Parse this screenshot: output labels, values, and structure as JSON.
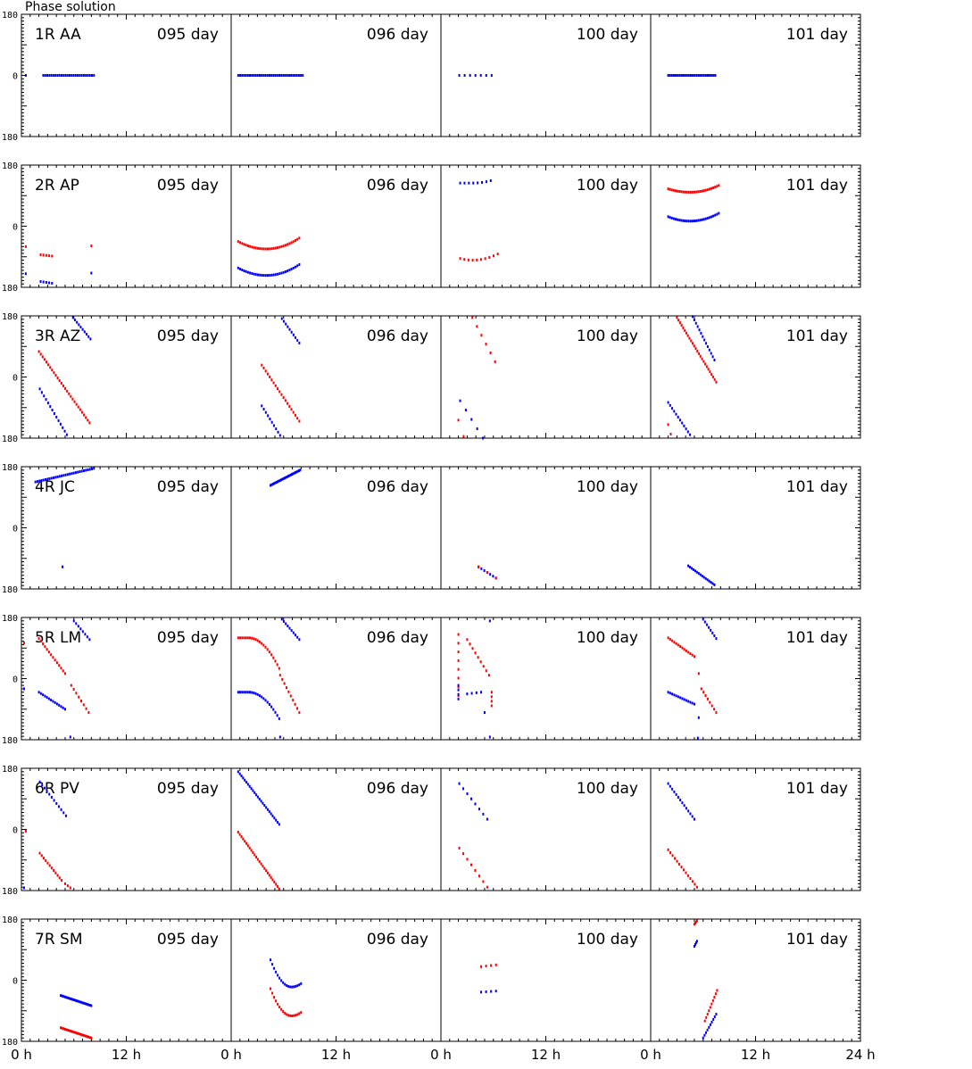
{
  "title": "Phase solution",
  "chart_data": {
    "type": "scatter",
    "title": "Phase solution",
    "days": [
      "095 day",
      "096 day",
      "100 day",
      "101 day"
    ],
    "baselines": [
      "1R AA",
      "2R AP",
      "3R AZ",
      "4R JC",
      "5R LM",
      "6R PV",
      "7R SM"
    ],
    "ylim": [
      -180,
      180
    ],
    "yticks": [
      "180",
      "0",
      "-180"
    ],
    "xlim": [
      0,
      24
    ],
    "xticks": [
      "0 h",
      "12 h",
      "0 h",
      "12 h",
      "0 h",
      "12 h",
      "0 h",
      "12 h",
      "24 h"
    ],
    "colors": {
      "blue": "#0000ff",
      "red": "#ff0000"
    },
    "series": [
      {
        "panel": 0,
        "day": 0,
        "color": "blue",
        "segments": [
          [
            0.5,
            0,
            0.5,
            0,
            1
          ],
          [
            2.5,
            0,
            8.3,
            0,
            26
          ]
        ]
      },
      {
        "panel": 0,
        "day": 1,
        "color": "blue",
        "segments": [
          [
            0.8,
            0,
            8.2,
            0,
            34
          ]
        ]
      },
      {
        "panel": 0,
        "day": 2,
        "color": "blue",
        "segments": [
          [
            2.1,
            0,
            5.8,
            0,
            7
          ]
        ]
      },
      {
        "panel": 0,
        "day": 3,
        "color": "blue",
        "segments": [
          [
            2.0,
            0,
            7.4,
            0,
            26
          ]
        ]
      },
      {
        "panel": 1,
        "day": 0,
        "color": "red",
        "segments": [
          [
            0.5,
            -60,
            0.5,
            -60,
            1
          ],
          [
            2.2,
            -84,
            3.5,
            -88,
            5
          ],
          [
            8.0,
            -58,
            8.0,
            -58,
            1
          ]
        ]
      },
      {
        "panel": 1,
        "day": 0,
        "color": "blue",
        "segments": [
          [
            0.5,
            -140,
            0.5,
            -140,
            1
          ],
          [
            2.2,
            -163,
            3.5,
            -168,
            5
          ],
          [
            8.0,
            -138,
            8.0,
            -138,
            1
          ]
        ]
      },
      {
        "panel": 1,
        "day": 1,
        "color": "red",
        "curve": {
          "x0": 0.8,
          "x1": 7.8,
          "xm": 4.0,
          "ym": -67,
          "ya": -45,
          "yb": -35,
          "n": 32
        }
      },
      {
        "panel": 1,
        "day": 1,
        "color": "blue",
        "curve": {
          "x0": 0.8,
          "x1": 7.8,
          "xm": 4.0,
          "ym": -145,
          "ya": -123,
          "yb": -113,
          "n": 32
        }
      },
      {
        "panel": 1,
        "day": 2,
        "color": "blue",
        "curve": {
          "x0": 2.2,
          "x1": 5.7,
          "xm": 3.6,
          "ym": 127,
          "ya": 127,
          "yb": 134,
          "n": 8
        }
      },
      {
        "panel": 1,
        "day": 2,
        "color": "red",
        "curve": {
          "x0": 2.2,
          "x1": 6.5,
          "xm": 3.6,
          "ym": -100,
          "ya": -95,
          "yb": -82,
          "n": 10
        }
      },
      {
        "panel": 1,
        "day": 3,
        "color": "red",
        "curve": {
          "x0": 2.0,
          "x1": 7.8,
          "xm": 4.5,
          "ym": 100,
          "ya": 110,
          "yb": 120,
          "n": 28
        }
      },
      {
        "panel": 1,
        "day": 3,
        "color": "blue",
        "curve": {
          "x0": 2.0,
          "x1": 7.8,
          "xm": 4.5,
          "ym": 15,
          "ya": 28,
          "yb": 38,
          "n": 28
        }
      },
      {
        "panel": 2,
        "day": 0,
        "color": "red",
        "segments": [
          [
            2.0,
            75,
            7.8,
            -135,
            28
          ]
        ]
      },
      {
        "panel": 2,
        "day": 0,
        "color": "blue",
        "segments": [
          [
            2.1,
            -35,
            5.2,
            -170,
            14
          ],
          [
            5.9,
            175,
            7.9,
            112,
            10
          ]
        ]
      },
      {
        "panel": 2,
        "day": 1,
        "color": "red",
        "segments": [
          [
            3.5,
            35,
            7.8,
            -130,
            20
          ]
        ]
      },
      {
        "panel": 2,
        "day": 1,
        "color": "blue",
        "segments": [
          [
            3.5,
            -85,
            5.6,
            -172,
            10
          ],
          [
            5.8,
            172,
            7.8,
            100,
            10
          ]
        ]
      },
      {
        "panel": 2,
        "day": 2,
        "color": "red",
        "segments": [
          [
            2.0,
            -127,
            2.6,
            -175,
            2
          ],
          [
            3.6,
            175,
            6.2,
            45,
            6
          ]
        ]
      },
      {
        "panel": 2,
        "day": 2,
        "color": "blue",
        "segments": [
          [
            2.2,
            -70,
            4.8,
            -180,
            5
          ]
        ]
      },
      {
        "panel": 2,
        "day": 3,
        "color": "red",
        "segments": [
          [
            2.0,
            -140,
            2.3,
            -168,
            2
          ],
          [
            3.0,
            175,
            7.5,
            -15,
            26
          ]
        ]
      },
      {
        "panel": 2,
        "day": 3,
        "color": "blue",
        "segments": [
          [
            2.0,
            -75,
            4.5,
            -170,
            12
          ],
          [
            4.8,
            178,
            7.3,
            50,
            14
          ]
        ]
      },
      {
        "panel": 3,
        "day": 0,
        "color": "blue",
        "segments": [
          [
            1.6,
            135,
            8.3,
            175,
            30
          ],
          [
            4.7,
            -115,
            4.7,
            -115,
            1
          ]
        ]
      },
      {
        "panel": 3,
        "day": 1,
        "color": "blue",
        "segments": [
          [
            4.5,
            125,
            7.9,
            170,
            26
          ]
        ]
      },
      {
        "panel": 3,
        "day": 2,
        "color": "blue",
        "segments": [
          [
            4.3,
            -115,
            6.3,
            -148,
            7
          ]
        ]
      },
      {
        "panel": 3,
        "day": 2,
        "color": "red",
        "segments": [
          [
            4.3,
            -115,
            6.3,
            -148,
            3
          ]
        ]
      },
      {
        "panel": 3,
        "day": 3,
        "color": "blue",
        "segments": [
          [
            4.3,
            -112,
            7.3,
            -168,
            16
          ]
        ]
      },
      {
        "panel": 4,
        "day": 0,
        "color": "red",
        "segments": [
          [
            0.3,
            105,
            0.3,
            105,
            1
          ],
          [
            2.0,
            118,
            5.0,
            15,
            14
          ],
          [
            5.7,
            -20,
            7.7,
            -100,
            8
          ]
        ]
      },
      {
        "panel": 4,
        "day": 0,
        "color": "blue",
        "segments": [
          [
            0.3,
            -30,
            0.3,
            -30,
            1
          ],
          [
            2.0,
            -40,
            5.0,
            -90,
            14
          ],
          [
            6.0,
            170,
            7.8,
            115,
            8
          ],
          [
            5.6,
            -172,
            5.6,
            -172,
            1
          ]
        ]
      },
      {
        "panel": 4,
        "day": 1,
        "color": "red",
        "curve": {
          "x0": 0.8,
          "x1": 5.5,
          "xm": 2.0,
          "ym": 120,
          "ya": 120,
          "yb": 30,
          "n": 22
        }
      },
      {
        "panel": 4,
        "day": 1,
        "color": "red",
        "segments": [
          [
            5.6,
            10,
            7.8,
            -100,
            10
          ]
        ]
      },
      {
        "panel": 4,
        "day": 1,
        "color": "blue",
        "curve": {
          "x0": 0.8,
          "x1": 5.5,
          "xm": 2.0,
          "ym": -40,
          "ya": -40,
          "yb": -118,
          "n": 22
        }
      },
      {
        "panel": 4,
        "day": 1,
        "color": "blue",
        "segments": [
          [
            5.8,
            175,
            7.8,
            115,
            10
          ],
          [
            5.6,
            -172,
            5.6,
            -172,
            1
          ]
        ]
      },
      {
        "panel": 4,
        "day": 2,
        "color": "red",
        "segments": [
          [
            2.0,
            130,
            2.0,
            -50,
            8
          ],
          [
            3.0,
            115,
            5.5,
            10,
            9
          ],
          [
            5.8,
            -40,
            5.8,
            -80,
            4
          ]
        ]
      },
      {
        "panel": 4,
        "day": 2,
        "color": "blue",
        "segments": [
          [
            2.0,
            -20,
            2.0,
            -60,
            4
          ],
          [
            3.0,
            -45,
            4.6,
            -40,
            4
          ],
          [
            5.0,
            -100,
            5.0,
            -100,
            1
          ],
          [
            5.6,
            170,
            5.6,
            170,
            1
          ],
          [
            5.6,
            -172,
            5.6,
            -172,
            1
          ]
        ]
      },
      {
        "panel": 4,
        "day": 3,
        "color": "red",
        "segments": [
          [
            2.0,
            120,
            5.0,
            65,
            14
          ],
          [
            5.5,
            15,
            5.5,
            15,
            1
          ],
          [
            5.8,
            -30,
            7.5,
            -100,
            8
          ]
        ]
      },
      {
        "panel": 4,
        "day": 3,
        "color": "blue",
        "segments": [
          [
            2.0,
            -40,
            5.0,
            -75,
            14
          ],
          [
            5.5,
            -115,
            5.5,
            -115,
            1
          ],
          [
            6.0,
            175,
            7.5,
            118,
            8
          ],
          [
            5.4,
            -175,
            5.4,
            -175,
            1
          ]
        ]
      },
      {
        "panel": 5,
        "day": 0,
        "color": "red",
        "segments": [
          [
            0.5,
            -5,
            0.5,
            -5,
            1
          ],
          [
            2.1,
            -70,
            4.6,
            -150,
            12
          ],
          [
            5.0,
            -160,
            5.6,
            -172,
            3
          ]
        ]
      },
      {
        "panel": 5,
        "day": 0,
        "color": "blue",
        "segments": [
          [
            2.1,
            140,
            5.1,
            40,
            12
          ],
          [
            0.3,
            -172,
            0.3,
            -172,
            1
          ]
        ]
      },
      {
        "panel": 5,
        "day": 1,
        "color": "blue",
        "segments": [
          [
            0.8,
            170,
            5.5,
            15,
            26
          ]
        ]
      },
      {
        "panel": 5,
        "day": 1,
        "color": "red",
        "segments": [
          [
            0.8,
            -8,
            5.5,
            -175,
            26
          ]
        ]
      },
      {
        "panel": 5,
        "day": 2,
        "color": "blue",
        "segments": [
          [
            2.1,
            135,
            5.3,
            30,
            8
          ]
        ]
      },
      {
        "panel": 5,
        "day": 2,
        "color": "red",
        "segments": [
          [
            2.1,
            -55,
            5.3,
            -170,
            8
          ]
        ]
      },
      {
        "panel": 5,
        "day": 3,
        "color": "blue",
        "segments": [
          [
            2.0,
            135,
            5.0,
            30,
            14
          ]
        ]
      },
      {
        "panel": 5,
        "day": 3,
        "color": "red",
        "segments": [
          [
            2.0,
            -60,
            5.3,
            -170,
            14
          ]
        ]
      },
      {
        "panel": 6,
        "day": 0,
        "color": "blue",
        "segments": [
          [
            4.5,
            -45,
            8.0,
            -75,
            22
          ]
        ]
      },
      {
        "panel": 6,
        "day": 0,
        "color": "red",
        "segments": [
          [
            4.5,
            -140,
            8.0,
            -170,
            22
          ]
        ]
      },
      {
        "panel": 6,
        "day": 1,
        "color": "blue",
        "curve": {
          "x0": 4.5,
          "x1": 8.0,
          "xm": 6.9,
          "ym": -20,
          "ya": 60,
          "yb": -10,
          "n": 18
        }
      },
      {
        "panel": 6,
        "day": 1,
        "color": "red",
        "curve": {
          "x0": 4.5,
          "x1": 8.0,
          "xm": 6.9,
          "ym": -105,
          "ya": -25,
          "yb": -95,
          "n": 18
        }
      },
      {
        "panel": 6,
        "day": 2,
        "color": "red",
        "segments": [
          [
            4.6,
            40,
            6.3,
            45,
            4
          ]
        ]
      },
      {
        "panel": 6,
        "day": 2,
        "color": "blue",
        "segments": [
          [
            4.6,
            -35,
            6.3,
            -32,
            4
          ]
        ]
      },
      {
        "panel": 6,
        "day": 3,
        "color": "red",
        "segments": [
          [
            5.0,
            165,
            5.3,
            175,
            4
          ],
          [
            6.2,
            -120,
            7.6,
            -30,
            10
          ]
        ]
      },
      {
        "panel": 6,
        "day": 3,
        "color": "blue",
        "segments": [
          [
            5.0,
            100,
            5.3,
            115,
            4
          ],
          [
            6.0,
            -170,
            7.5,
            -100,
            10
          ]
        ]
      }
    ]
  }
}
